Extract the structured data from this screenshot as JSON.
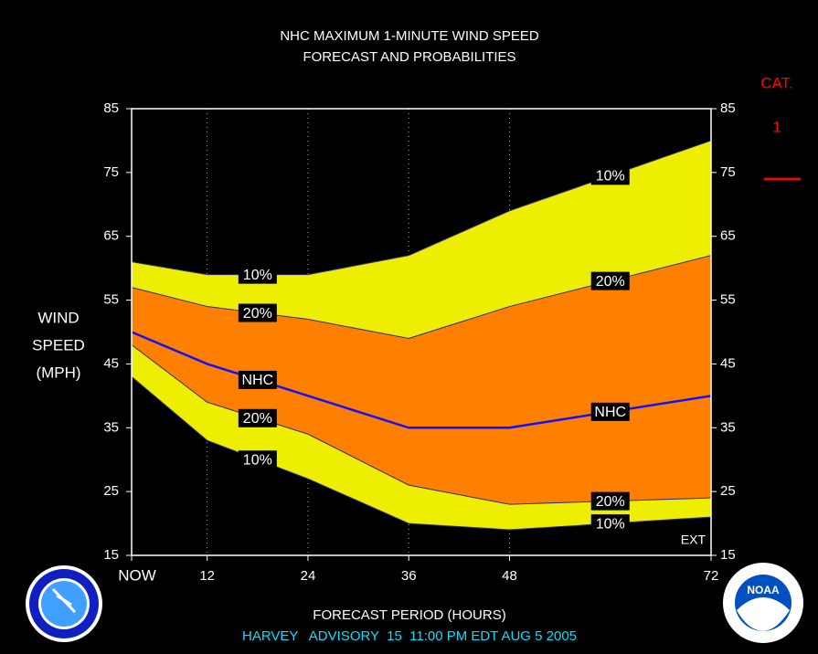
{
  "chart_data": {
    "type": "fan",
    "title": "NHC MAXIMUM 1-MINUTE WIND SPEED",
    "subtitle": "FORECAST AND PROBABILITIES",
    "y_label": [
      "WIND",
      "SPEED",
      "(MPH)"
    ],
    "x_label": "FORECAST PERIOD (HOURS)",
    "footer": "HARVEY   ADVISORY  15  11:00 PM EDT AUG 5 2005",
    "note": "EXT",
    "x": [
      3,
      12,
      24,
      36,
      48,
      72
    ],
    "xlim": [
      3,
      72
    ],
    "xticks": [
      {
        "value": 3,
        "label": "NOW"
      },
      12,
      24,
      36,
      48,
      72
    ],
    "ylim": [
      15,
      85
    ],
    "yticks": [
      15,
      25,
      35,
      45,
      55,
      65,
      75,
      85
    ],
    "grid": true,
    "series": [
      {
        "name": "10%",
        "color": "#2a2a80",
        "fill": "#eeee00",
        "values": [
          61,
          59,
          59,
          62,
          69,
          80
        ]
      },
      {
        "name": "20%",
        "color": "#2a2a80",
        "fill": "#ff8000",
        "values": [
          57,
          54,
          52,
          49,
          54,
          62
        ]
      },
      {
        "name": "NHC",
        "color": "#1010ff",
        "values": [
          50,
          45,
          40,
          35,
          35,
          40
        ]
      },
      {
        "name": "20%",
        "color": "#2a2a80",
        "values": [
          48,
          39,
          34,
          26,
          23,
          24
        ]
      },
      {
        "name": "10%",
        "color": "#2a2a80",
        "values": [
          43,
          33,
          27,
          20,
          19,
          21
        ]
      }
    ],
    "category": {
      "label": "CAT.",
      "name": "1",
      "value": 74,
      "color": "#ff0000"
    }
  }
}
